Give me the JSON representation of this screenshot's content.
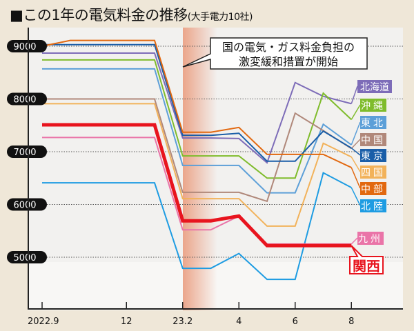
{
  "chart_data": {
    "type": "line",
    "title": "■この1年の電気料金の推移",
    "subtitle": "(大手電力10社)",
    "xlabel": "",
    "ylabel": "",
    "x": [
      "2022.9",
      "2022.10",
      "2022.11",
      "2022.12",
      "2023.1",
      "2023.2",
      "2023.3",
      "2023.4",
      "2023.5",
      "2023.6",
      "2023.7",
      "2023.8"
    ],
    "x_tick_labels": [
      {
        "at": "2022.9",
        "label": "2022.9"
      },
      {
        "at": "2022.12",
        "label": "12"
      },
      {
        "at": "2023.2",
        "label": "23.2"
      },
      {
        "at": "2023.4",
        "label": "4"
      },
      {
        "at": "2023.6",
        "label": "6"
      },
      {
        "at": "2023.8",
        "label": "8"
      }
    ],
    "y_ticks": [
      5000,
      6000,
      7000,
      8000,
      9000
    ],
    "ylim": [
      4000,
      9300
    ],
    "grid": "horizontal dotted",
    "annotation": {
      "text_line1": "国の電気・ガス料金負担の",
      "text_line2": "激変緩和措置が開始",
      "at": "2023.2"
    },
    "series": [
      {
        "name": "北海道",
        "color": "#7d6cb8",
        "values": [
          8870,
          8870,
          8870,
          8870,
          8870,
          7260,
          7260,
          7250,
          6790,
          8310,
          8050,
          7910
        ]
      },
      {
        "name": "沖縄",
        "color": "#7fbc2c",
        "values": [
          8740,
          8740,
          8740,
          8740,
          8740,
          6920,
          6920,
          6920,
          6500,
          6500,
          8110,
          7610
        ]
      },
      {
        "name": "東北",
        "color": "#5c9fd8",
        "values": [
          8570,
          8570,
          8570,
          8570,
          8570,
          6740,
          6740,
          6740,
          6220,
          6220,
          7520,
          7130
        ]
      },
      {
        "name": "中国",
        "color": "#b0887a",
        "values": [
          8000,
          8000,
          8000,
          8000,
          8000,
          6230,
          6230,
          6230,
          6060,
          7730,
          7400,
          7060
        ]
      },
      {
        "name": "東京",
        "color": "#1a5ea8",
        "values": [
          9030,
          9030,
          9030,
          9030,
          9030,
          7310,
          7310,
          7350,
          6820,
          6820,
          7390,
          7070
        ]
      },
      {
        "name": "四国",
        "color": "#f2b25a",
        "values": [
          7910,
          7910,
          7910,
          7910,
          7910,
          6110,
          6110,
          6110,
          5590,
          5590,
          7160,
          6900
        ]
      },
      {
        "name": "中部",
        "color": "#e2680f",
        "values": [
          9000,
          9110,
          9110,
          9110,
          9110,
          7370,
          7370,
          7460,
          6950,
          6950,
          6950,
          6700
        ]
      },
      {
        "name": "北陸",
        "color": "#1e9ce2",
        "values": [
          6410,
          6410,
          6410,
          6410,
          6410,
          4790,
          4790,
          5070,
          4580,
          4580,
          6600,
          6320
        ]
      },
      {
        "name": "九州",
        "color": "#ea74a8",
        "values": [
          7270,
          7270,
          7270,
          7270,
          7270,
          5520,
          5520,
          5780,
          5250,
          5250,
          5250,
          5250
        ]
      },
      {
        "name": "関西",
        "color": "#e8141e",
        "values": [
          7510,
          7510,
          7510,
          7510,
          7510,
          5690,
          5690,
          5780,
          5220,
          5220,
          5220,
          5220
        ]
      }
    ]
  }
}
